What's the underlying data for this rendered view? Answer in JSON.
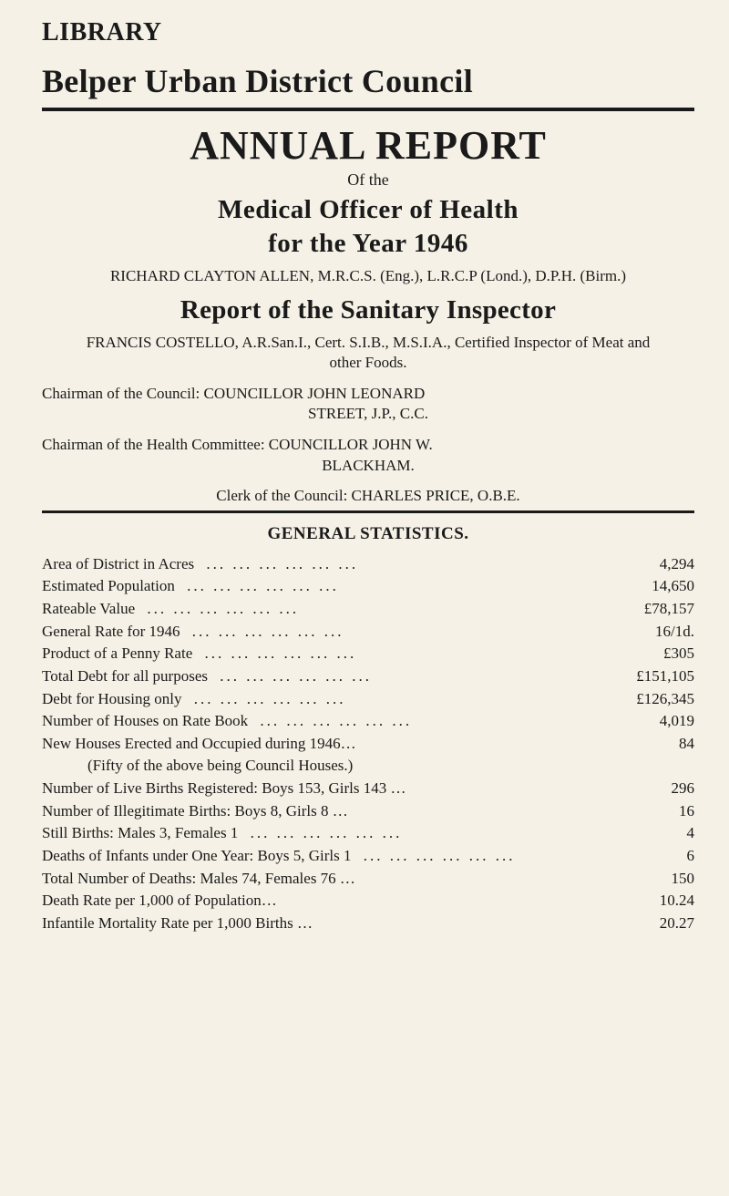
{
  "colors": {
    "background": "#f5f1e6",
    "text": "#1a1a1a",
    "rule": "#1a1a1a"
  },
  "typography": {
    "body_font": "Georgia, 'Times New Roman', serif",
    "library_fontsize": 28,
    "main_title_fontsize": 36,
    "annual_report_fontsize": 44,
    "section_title_fontsize": 29,
    "body_fontsize": 17,
    "stats_title_fontsize": 19
  },
  "header": {
    "library": "LIBRARY",
    "main_title": "Belper Urban District Council",
    "annual_report": "ANNUAL REPORT",
    "of_the": "Of the",
    "moh_title": "Medical Officer of Health",
    "for_year": "for the  Year  1946",
    "moh_name": "RICHARD CLAYTON ALLEN, M.R.C.S. (Eng.), L.R.C.P (Lond.), D.P.H. (Birm.)",
    "sanitary_title": "Report of the Sanitary Inspector",
    "sanitary_name": "FRANCIS COSTELLO, A.R.San.I., Cert. S.I.B., M.S.I.A., Certified Inspector of Meat and other Foods.",
    "chairman_council_1": "Chairman of the Council: COUNCILLOR JOHN LEONARD",
    "chairman_council_2": "STREET, J.P., C.C.",
    "chairman_health_1": "Chairman of the Health Committee: COUNCILLOR JOHN W.",
    "chairman_health_2": "BLACKHAM.",
    "clerk": "Clerk of the Council: CHARLES PRICE, O.B.E."
  },
  "stats": {
    "title": "GENERAL STATISTICS.",
    "rows": [
      {
        "label": "Area of District in Acres",
        "value": "4,294"
      },
      {
        "label": "Estimated Population",
        "value": "14,650"
      },
      {
        "label": "Rateable Value",
        "value": "£78,157"
      },
      {
        "label": "General Rate for 1946",
        "value": "16/1d."
      },
      {
        "label": "Product of a Penny Rate",
        "value": "£305"
      },
      {
        "label": "Total Debt for all purposes",
        "value": "£151,105"
      },
      {
        "label": "Debt for Housing only",
        "value": "£126,345"
      },
      {
        "label": "Number of Houses on Rate Book",
        "value": "4,019"
      },
      {
        "label": "New Houses Erected and Occupied during 1946…",
        "value": "84"
      },
      {
        "label": "(Fifty of the above being Council Houses.)",
        "value": ""
      },
      {
        "label": "Number of Live Births Registered: Boys 153, Girls 143 …",
        "value": "296"
      },
      {
        "label": "Number of Illegitimate Births: Boys 8, Girls 8 …",
        "value": "16"
      },
      {
        "label": "Still Births: Males 3, Females 1",
        "value": "4"
      },
      {
        "label": "Deaths of Infants under One Year: Boys 5, Girls 1",
        "value": "6"
      },
      {
        "label": "Total Number of Deaths: Males 74, Females 76 …",
        "value": "150"
      },
      {
        "label": "Death Rate per 1,000 of Population…",
        "value": "10.24"
      },
      {
        "label": "Infantile Mortality Rate per 1,000 Births …",
        "value": "20.27"
      }
    ]
  }
}
